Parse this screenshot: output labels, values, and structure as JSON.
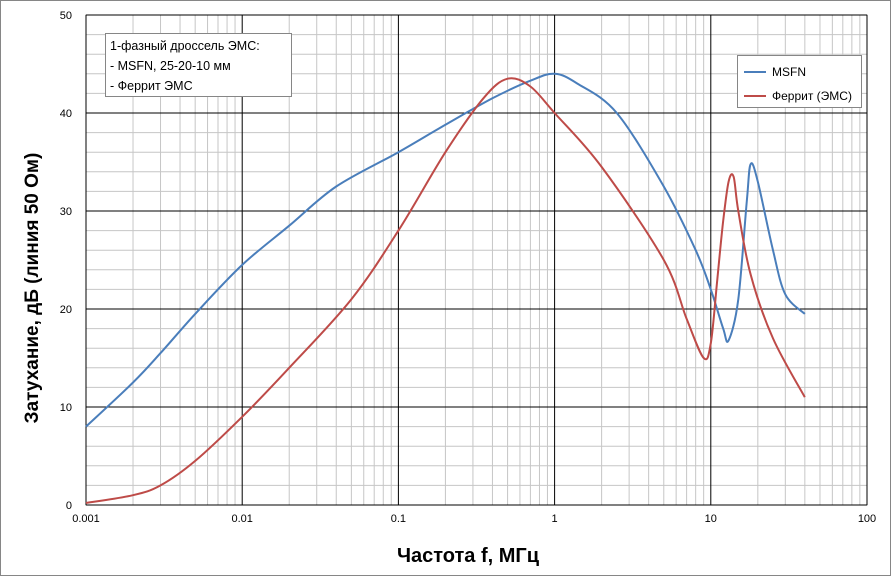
{
  "chart_data": {
    "type": "line",
    "xscale": "log",
    "xlim": [
      0.001,
      100
    ],
    "ylim": [
      0,
      50
    ],
    "grid": true,
    "xlabel": "Частота f, МГц",
    "ylabel": "Затухание, дБ (линия 50 Ом)",
    "x_ticks": [
      "0.001",
      "0.01",
      "0.1",
      "1",
      "10",
      "100"
    ],
    "y_ticks": [
      "0",
      "10",
      "20",
      "30",
      "40",
      "50"
    ],
    "annotation": [
      "1-фазный дроссель ЭМС:",
      "- MSFN, 25-20-10 мм",
      "- Феррит ЭМС"
    ],
    "legend_position": "top-right",
    "series": [
      {
        "name": "MSFN",
        "color": "#4a7ebb",
        "points": [
          [
            0.001,
            8
          ],
          [
            0.002,
            12.5
          ],
          [
            0.003,
            15.5
          ],
          [
            0.005,
            19.5
          ],
          [
            0.01,
            24.5
          ],
          [
            0.02,
            28.5
          ],
          [
            0.04,
            32.5
          ],
          [
            0.1,
            36
          ],
          [
            0.2,
            38.8
          ],
          [
            0.4,
            41.5
          ],
          [
            0.7,
            43.3
          ],
          [
            1.0,
            44
          ],
          [
            1.4,
            43
          ],
          [
            2.5,
            40
          ],
          [
            5,
            32.5
          ],
          [
            8,
            26
          ],
          [
            10,
            22
          ],
          [
            12,
            18
          ],
          [
            13,
            16.8
          ],
          [
            15,
            21
          ],
          [
            17,
            31
          ],
          [
            18,
            34.8
          ],
          [
            20,
            33
          ],
          [
            25,
            26
          ],
          [
            30,
            21.5
          ],
          [
            40,
            19.5
          ]
        ]
      },
      {
        "name": "Феррит (ЭМС)",
        "color": "#be4b48",
        "points": [
          [
            0.001,
            0.2
          ],
          [
            0.002,
            1
          ],
          [
            0.003,
            2
          ],
          [
            0.005,
            4.5
          ],
          [
            0.01,
            9
          ],
          [
            0.02,
            14
          ],
          [
            0.05,
            21
          ],
          [
            0.1,
            28
          ],
          [
            0.2,
            36
          ],
          [
            0.35,
            41.5
          ],
          [
            0.5,
            43.5
          ],
          [
            0.7,
            42.7
          ],
          [
            1.0,
            40
          ],
          [
            2,
            34.5
          ],
          [
            5,
            25
          ],
          [
            7,
            19
          ],
          [
            9,
            15
          ],
          [
            10,
            16.5
          ],
          [
            11,
            23
          ],
          [
            12,
            29
          ],
          [
            13,
            33
          ],
          [
            14,
            33.5
          ],
          [
            15,
            30
          ],
          [
            18,
            23.5
          ],
          [
            25,
            17
          ],
          [
            40,
            11
          ]
        ]
      }
    ]
  }
}
